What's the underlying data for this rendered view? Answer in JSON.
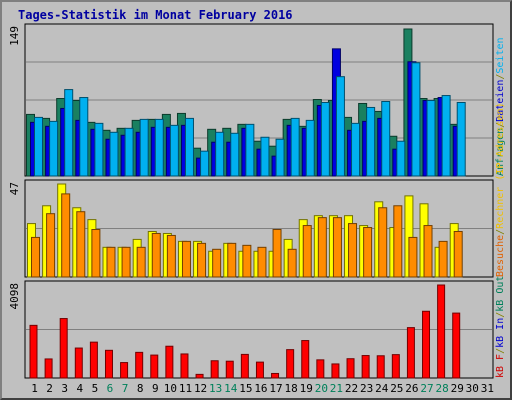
{
  "chart_data": {
    "type": "bar",
    "title": "Tages-Statistik im Monat February 2016",
    "categories": [
      "1",
      "2",
      "3",
      "4",
      "5",
      "6",
      "7",
      "8",
      "9",
      "10",
      "11",
      "12",
      "13",
      "14",
      "15",
      "16",
      "17",
      "18",
      "19",
      "20",
      "21",
      "22",
      "23",
      "24",
      "25",
      "26",
      "27",
      "28",
      "29",
      "30",
      "31"
    ],
    "weekend_days": [
      6,
      7,
      13,
      14,
      20,
      21,
      27,
      28
    ],
    "panels": [
      {
        "id": "requests",
        "ymax_label": "149",
        "ymax": 149,
        "side_labels": [
          {
            "text": "Anfragen",
            "color": "#00805a"
          },
          {
            "text": "/",
            "color": "#808000"
          },
          {
            "text": "Dateien",
            "color": "#0000d0"
          },
          {
            "text": "/",
            "color": "#808000"
          },
          {
            "text": "Seiten",
            "color": "#00b0f0"
          }
        ],
        "series": [
          {
            "name": "Anfragen",
            "color": "#1a8060",
            "values": [
              62,
              58,
              78,
              76,
              54,
              46,
              48,
              56,
              57,
              62,
              63,
              28,
              47,
              48,
              52,
              35,
              30,
              57,
              50,
              77,
              76,
              59,
              73,
              65,
              40,
              148,
              78,
              78,
              52,
              0,
              0
            ]
          },
          {
            "name": "Dateien",
            "color": "#0000e0",
            "values": [
              54,
              50,
              68,
              56,
              47,
              37,
              41,
              44,
              49,
              49,
              51,
              18,
              34,
              34,
              48,
              27,
              20,
              51,
              48,
              71,
              128,
              46,
              55,
              58,
              27,
              115,
              76,
              79,
              50,
              0,
              0
            ]
          },
          {
            "name": "Seiten",
            "color": "#00b0f0",
            "values": [
              59,
              55,
              87,
              79,
              53,
              44,
              48,
              57,
              57,
              51,
              58,
              25,
              44,
              43,
              52,
              39,
              37,
              58,
              56,
              74,
              100,
              53,
              69,
              75,
              35,
              114,
              76,
              81,
              74,
              0,
              0
            ]
          }
        ]
      },
      {
        "id": "visits",
        "ymax_label": "47",
        "ymax": 47,
        "side_labels": [
          {
            "text": "Besuche",
            "color": "#e06000"
          },
          {
            "text": "/",
            "color": "#808000"
          },
          {
            "text": "Rechner (IP-Adressen)",
            "color": "#f0c000"
          }
        ],
        "series": [
          {
            "name": "Rechner",
            "color": "#ffff00",
            "values": [
              27,
              36,
              47,
              35,
              29,
              15,
              15,
              19,
              23,
              22,
              18,
              18,
              13,
              17,
              13,
              13,
              13,
              19,
              29,
              31,
              31,
              31,
              26,
              38,
              25,
              41,
              37,
              15,
              27,
              0,
              0
            ]
          },
          {
            "name": "Besuche",
            "color": "#ff8c00",
            "values": [
              20,
              32,
              42,
              33,
              24,
              15,
              15,
              15,
              22,
              21,
              18,
              17,
              14,
              17,
              16,
              15,
              24,
              14,
              26,
              30,
              30,
              27,
              25,
              35,
              36,
              20,
              26,
              18,
              23,
              0,
              0
            ]
          }
        ]
      },
      {
        "id": "kbytes",
        "ymax_label": "4098",
        "ymax": 4098,
        "side_labels": [
          {
            "text": "kB F",
            "color": "#d00000"
          },
          {
            "text": "/",
            "color": "#808000"
          },
          {
            "text": "kB In",
            "color": "#0000d0"
          },
          {
            "text": "/",
            "color": "#808000"
          },
          {
            "text": "kB Out",
            "color": "#00805a"
          }
        ],
        "series": [
          {
            "name": "kB F",
            "color": "#ff0000",
            "values": [
              2320,
              840,
              2620,
              1320,
              1580,
              1220,
              680,
              1130,
              1010,
              1400,
              1060,
              160,
              760,
              740,
              1040,
              700,
              200,
              1250,
              1650,
              800,
              620,
              850,
              990,
              980,
              1030,
              2220,
              2940,
              4098,
              2860,
              0,
              0
            ]
          }
        ]
      }
    ]
  }
}
